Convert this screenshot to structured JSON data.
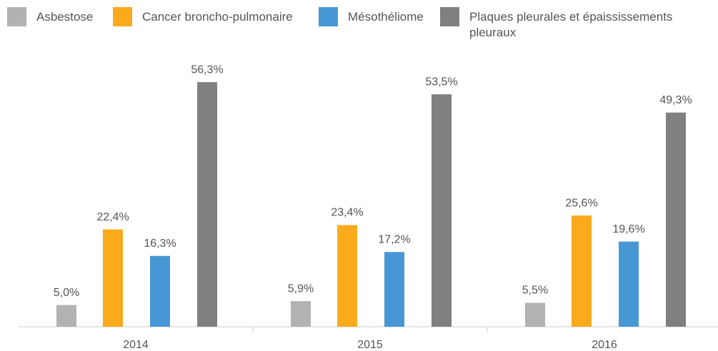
{
  "chart_data": {
    "type": "bar",
    "categories": [
      "2014",
      "2015",
      "2016"
    ],
    "series": [
      {
        "name": "Asbestose",
        "color": "#b2b2b2",
        "values": [
          5.0,
          5.9,
          5.5
        ],
        "value_labels": [
          "5,0%",
          "5,9%",
          "5,5%"
        ]
      },
      {
        "name": "Cancer broncho-pulmonaire",
        "color": "#f9ab1b",
        "values": [
          22.4,
          23.4,
          25.6
        ],
        "value_labels": [
          "22,4%",
          "23,4%",
          "25,6%"
        ]
      },
      {
        "name": "Mésothéliome",
        "color": "#4797d4",
        "values": [
          16.3,
          17.2,
          19.6
        ],
        "value_labels": [
          "16,3%",
          "17,2%",
          "19,6%"
        ]
      },
      {
        "name": "Plaques pleurales et épaississements pleuraux",
        "color": "#808083",
        "values": [
          56.3,
          53.5,
          49.3
        ],
        "value_labels": [
          "56,3%",
          "53,5%",
          "49,3%"
        ]
      }
    ],
    "ylim": [
      0,
      60
    ]
  }
}
